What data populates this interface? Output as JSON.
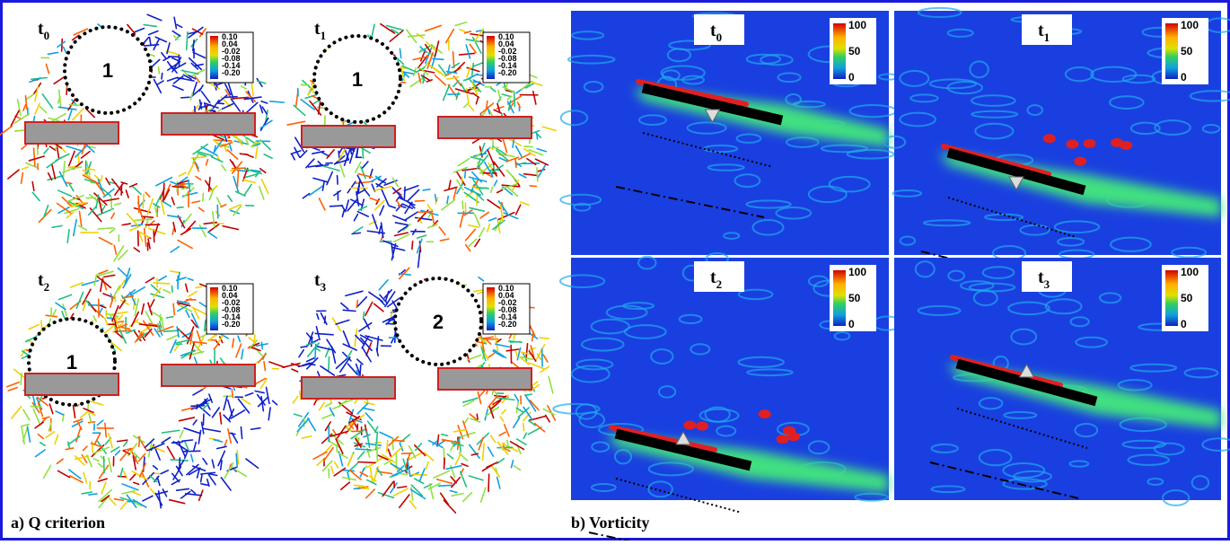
{
  "panels": [
    {
      "caption": "a) Q criterion",
      "frames": [
        {
          "time": "t",
          "subscript": "0",
          "region": "1",
          "colorbar": [
            "0.10",
            "0.04",
            "-0.02",
            "-0.08",
            "-0.14",
            "-0.20"
          ]
        },
        {
          "time": "t",
          "subscript": "1",
          "region": "1",
          "colorbar": [
            "0.10",
            "0.04",
            "-0.02",
            "-0.08",
            "-0.14",
            "-0.20"
          ]
        },
        {
          "time": "t",
          "subscript": "2",
          "region": "1",
          "colorbar": [
            "0.10",
            "0.04",
            "-0.02",
            "-0.08",
            "-0.14",
            "-0.20"
          ]
        },
        {
          "time": "t",
          "subscript": "3",
          "region": "2",
          "colorbar": [
            "0.10",
            "0.04",
            "-0.02",
            "-0.08",
            "-0.14",
            "-0.20"
          ]
        }
      ]
    },
    {
      "caption": "b) Vorticity",
      "frames": [
        {
          "time": "t",
          "subscript": "0",
          "colorbar": [
            "100",
            "50",
            "0"
          ]
        },
        {
          "time": "t",
          "subscript": "1",
          "colorbar": [
            "100",
            "50",
            "0"
          ]
        },
        {
          "time": "t",
          "subscript": "2",
          "colorbar": [
            "100",
            "50",
            "0"
          ]
        },
        {
          "time": "t",
          "subscript": "3",
          "colorbar": [
            "100",
            "50",
            "0"
          ]
        }
      ]
    }
  ]
}
